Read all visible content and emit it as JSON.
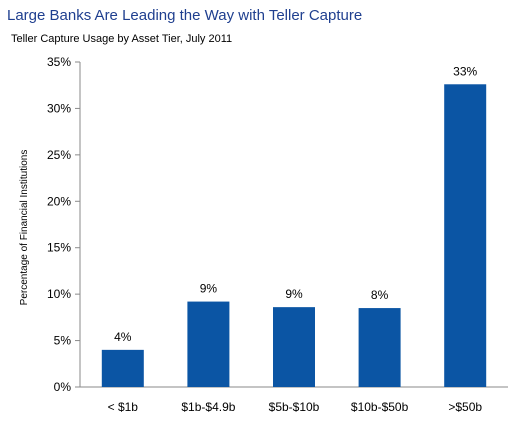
{
  "header": {
    "title": "Large Banks Are Leading the Way with Teller Capture",
    "subtitle": "Teller Capture Usage by Asset Tier, July 2011"
  },
  "colors": {
    "bar": "#0b55a4",
    "axis": "#8a8a8a"
  },
  "chart_data": {
    "type": "bar",
    "categories": [
      "< $1b",
      "$1b-$4.9b",
      "$5b-$10b",
      "$10b-$50b",
      ">$50b"
    ],
    "values": [
      4,
      9.2,
      8.6,
      8.5,
      32.6
    ],
    "data_labels": [
      "4%",
      "9%",
      "9%",
      "8%",
      "33%"
    ],
    "title": "Large Banks Are Leading the Way with Teller Capture",
    "subtitle": "Teller Capture Usage by Asset Tier, July 2011",
    "xlabel": "",
    "ylabel": "Percentage of Financial Institutions",
    "ylim": [
      0,
      35
    ],
    "yticks": [
      0,
      5,
      10,
      15,
      20,
      25,
      30,
      35
    ],
    "ytick_labels": [
      "0%",
      "5%",
      "10%",
      "15%",
      "20%",
      "25%",
      "30%",
      "35%"
    ],
    "grid": false,
    "legend": "none"
  }
}
